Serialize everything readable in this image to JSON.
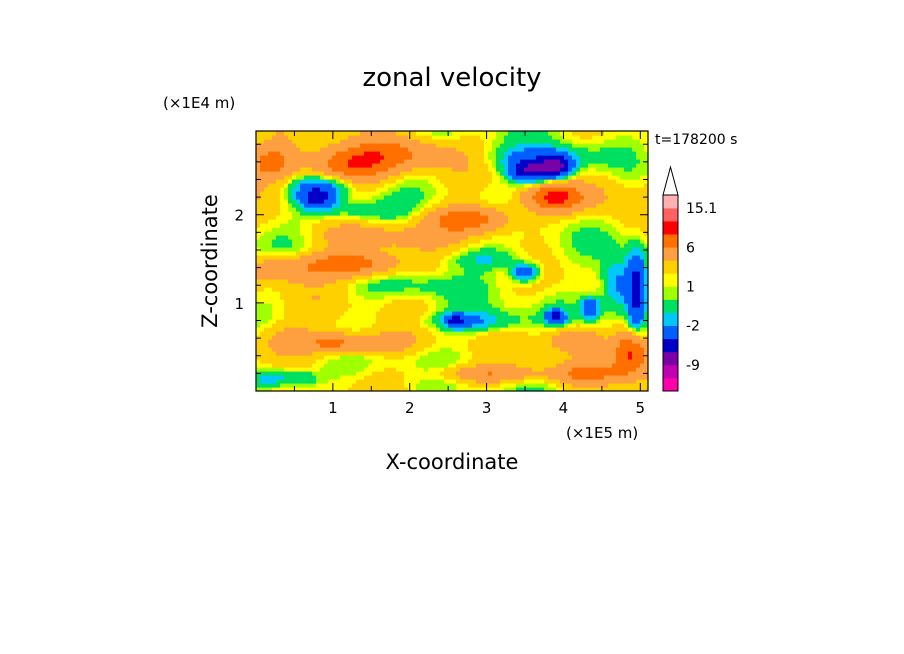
{
  "chart_data": {
    "type": "heatmap",
    "title": "zonal velocity",
    "xlabel": "X-coordinate",
    "ylabel": "Z-coordinate",
    "x_unit": "(×1E5 m)",
    "y_unit": "(×1E4 m)",
    "time_label": "t=178200 s",
    "xlim": [
      0,
      5.1
    ],
    "ylim": [
      0,
      2.95
    ],
    "x_ticks": [
      "1",
      "2",
      "3",
      "4",
      "5"
    ],
    "y_ticks": [
      "1",
      "2"
    ],
    "colorbar": {
      "labels": [
        "15.1",
        "6",
        "1",
        "-2",
        "-9"
      ],
      "colors": [
        "#ff00aa",
        "#c000b0",
        "#7a00a8",
        "#0000c8",
        "#0060ff",
        "#00c8ff",
        "#00e060",
        "#a0ff00",
        "#ffff00",
        "#ffd000",
        "#ffa040",
        "#ff7000",
        "#ff0000",
        "#ff6060",
        "#ffb0b0"
      ],
      "extend_max": true
    },
    "features": [
      {
        "x": 1.2,
        "z": 2.55,
        "u": 5,
        "w": 0.55,
        "h": 0.22
      },
      {
        "x": 0.2,
        "z": 2.6,
        "u": 4,
        "w": 0.35,
        "h": 0.2
      },
      {
        "x": 1.9,
        "z": 2.7,
        "u": 3,
        "w": 0.6,
        "h": 0.18
      },
      {
        "x": 0.8,
        "z": 2.2,
        "u": -7,
        "w": 0.25,
        "h": 0.12
      },
      {
        "x": 0.9,
        "z": 2.35,
        "u": -3,
        "w": 0.45,
        "h": 0.12
      },
      {
        "x": 1.3,
        "z": 2.05,
        "u": -2,
        "w": 0.6,
        "h": 0.12
      },
      {
        "x": 1.3,
        "z": 1.45,
        "u": 5,
        "w": 0.55,
        "h": 0.15
      },
      {
        "x": 0.4,
        "z": 1.4,
        "u": 3,
        "w": 0.5,
        "h": 0.15
      },
      {
        "x": 1.6,
        "z": 1.75,
        "u": 2,
        "w": 0.7,
        "h": 0.12
      },
      {
        "x": 2.8,
        "z": 1.95,
        "u": 5,
        "w": 0.55,
        "h": 0.16
      },
      {
        "x": 3.9,
        "z": 2.2,
        "u": 5,
        "w": 0.4,
        "h": 0.15
      },
      {
        "x": 3.55,
        "z": 2.5,
        "u": -8,
        "w": 0.25,
        "h": 0.12
      },
      {
        "x": 3.9,
        "z": 2.55,
        "u": -9,
        "w": 0.2,
        "h": 0.12
      },
      {
        "x": 3.7,
        "z": 2.65,
        "u": -3,
        "w": 0.6,
        "h": 0.15
      },
      {
        "x": 3.5,
        "z": 1.35,
        "u": -5,
        "w": 0.18,
        "h": 0.1
      },
      {
        "x": 3.0,
        "z": 1.5,
        "u": -2,
        "w": 0.55,
        "h": 0.12
      },
      {
        "x": 2.8,
        "z": 0.8,
        "u": -3,
        "w": 0.6,
        "h": 0.12
      },
      {
        "x": 2.6,
        "z": 0.8,
        "u": -6,
        "w": 0.12,
        "h": 0.06
      },
      {
        "x": 3.9,
        "z": 0.85,
        "u": -7,
        "w": 0.12,
        "h": 0.08
      },
      {
        "x": 4.35,
        "z": 0.95,
        "u": -5,
        "w": 0.12,
        "h": 0.12
      },
      {
        "x": 4.95,
        "z": 1.15,
        "u": -8,
        "w": 0.12,
        "h": 0.4
      },
      {
        "x": 4.7,
        "z": 1.2,
        "u": -4,
        "w": 0.2,
        "h": 0.3
      },
      {
        "x": 4.9,
        "z": 0.45,
        "u": 6,
        "w": 0.25,
        "h": 0.25
      },
      {
        "x": 4.3,
        "z": 0.2,
        "u": 3,
        "w": 0.5,
        "h": 0.12
      },
      {
        "x": 3.0,
        "z": 0.2,
        "u": 3,
        "w": 0.7,
        "h": 0.1
      },
      {
        "x": 1.0,
        "z": 0.55,
        "u": 4,
        "w": 0.4,
        "h": 0.12
      },
      {
        "x": 1.6,
        "z": 0.55,
        "u": 2,
        "w": 0.5,
        "h": 0.12
      },
      {
        "x": 0.3,
        "z": 0.6,
        "u": 2,
        "w": 0.4,
        "h": 0.2
      },
      {
        "x": 0.2,
        "z": 0.15,
        "u": -3,
        "w": 0.3,
        "h": 0.12
      },
      {
        "x": 0.6,
        "z": 0.15,
        "u": -2,
        "w": 0.25,
        "h": 0.1
      },
      {
        "x": 4.1,
        "z": 0.6,
        "u": 3,
        "w": 0.35,
        "h": 0.15
      },
      {
        "x": 3.2,
        "z": 1.1,
        "u": 0,
        "w": 0.7,
        "h": 0.15
      },
      {
        "x": 2.2,
        "z": 1.2,
        "u": -1,
        "w": 0.6,
        "h": 0.12
      },
      {
        "x": 4.55,
        "z": 2.3,
        "u": 1,
        "w": 0.3,
        "h": 0.3
      }
    ]
  }
}
